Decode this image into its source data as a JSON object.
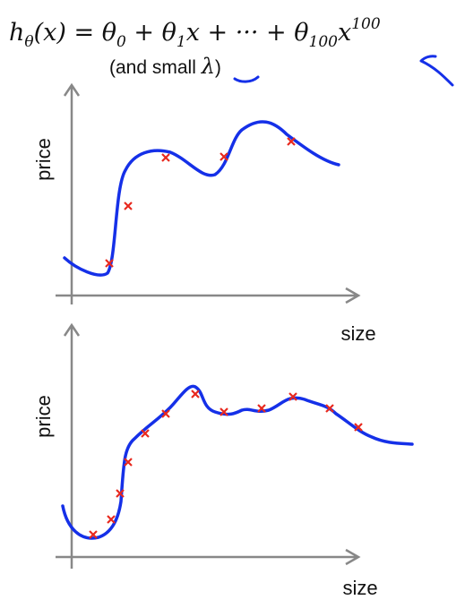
{
  "formula": {
    "parts": [
      "h",
      "θ",
      "(x) = θ",
      "0",
      " + θ",
      "1",
      "x + ··· + θ",
      "100",
      "x",
      "100"
    ]
  },
  "subtitle": {
    "before": "(and small ",
    "symbol": "λ",
    "after": ")"
  },
  "plots": [
    {
      "y_label": "price",
      "x_label": "size"
    },
    {
      "y_label": "price",
      "x_label": "size"
    }
  ]
}
